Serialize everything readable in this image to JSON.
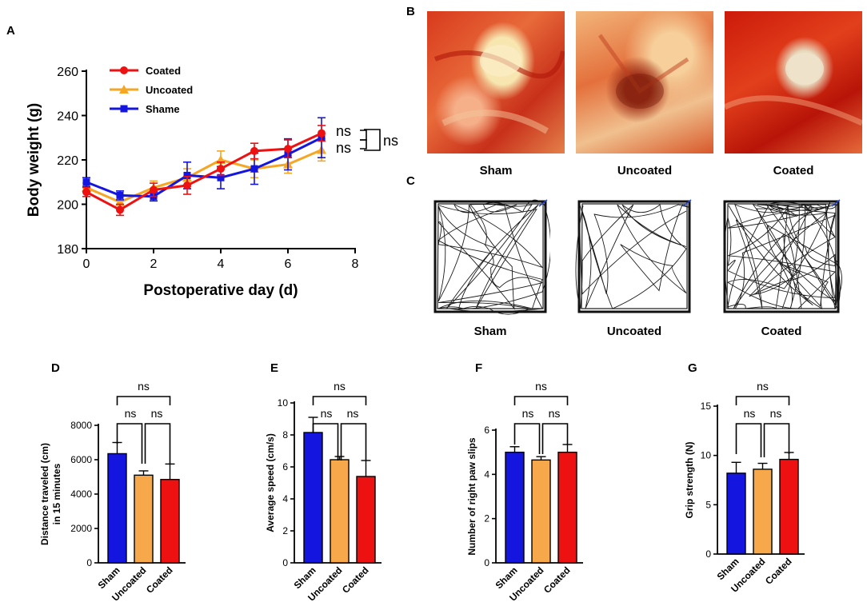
{
  "panel_labels": [
    "A",
    "B",
    "C",
    "D",
    "E",
    "F",
    "G"
  ],
  "colors": {
    "coated": "#ee1111",
    "uncoated": "#f5a623",
    "shame": "#1515e0",
    "sham_bar": "#1515e0",
    "uncoated_bar": "#f7a84a",
    "coated_bar": "#ee1111"
  },
  "significance": "ns",
  "photos": {
    "labels": [
      "Sham",
      "Uncoated",
      "Coated"
    ]
  },
  "tracks": {
    "labels": [
      "Sham",
      "Uncoated",
      "Coated"
    ]
  },
  "chart_data": [
    {
      "id": "A",
      "type": "line",
      "xlabel": "Postoperative day (d)",
      "ylabel": "Body weight (g)",
      "xlim": [
        0,
        8
      ],
      "ylim": [
        180,
        260
      ],
      "xticks": [
        0,
        2,
        4,
        6,
        8
      ],
      "yticks": [
        180,
        200,
        220,
        240,
        260
      ],
      "x": [
        0,
        1,
        2,
        3,
        4,
        5,
        6,
        7
      ],
      "legend": [
        "Coated",
        "Uncoated",
        "Shame"
      ],
      "series": [
        {
          "name": "Coated",
          "color": "#ee1111",
          "marker": "circle",
          "values": [
            205.5,
            197.5,
            206.5,
            208.5,
            216,
            224,
            225,
            232
          ],
          "errors": [
            2,
            2.5,
            3,
            4,
            3,
            3.5,
            4,
            3.5
          ]
        },
        {
          "name": "Uncoated",
          "color": "#f5a623",
          "marker": "triangle",
          "values": [
            207.5,
            201,
            207.5,
            212,
            220,
            216,
            218,
            224.5
          ],
          "errors": [
            2,
            3,
            3,
            4,
            4,
            4,
            4,
            5
          ]
        },
        {
          "name": "Shame",
          "color": "#1515e0",
          "marker": "square",
          "values": [
            210,
            204,
            203.5,
            213,
            212,
            216,
            222.5,
            230
          ],
          "errors": [
            2,
            2,
            2,
            6,
            5,
            7,
            7,
            9
          ]
        }
      ],
      "annotations": [
        "ns",
        "ns",
        "ns"
      ]
    },
    {
      "id": "D",
      "type": "bar",
      "ylabel_lines": [
        "Distance traveled (cm)",
        "in 15 minutes"
      ],
      "categories": [
        "Sham",
        "Uncoated",
        "Coated"
      ],
      "values": [
        6350,
        5100,
        4850
      ],
      "errors": [
        650,
        250,
        900
      ],
      "ylim": [
        0,
        8000
      ],
      "yticks": [
        0,
        2000,
        4000,
        6000,
        8000
      ],
      "annotations": [
        "ns",
        "ns",
        "ns"
      ]
    },
    {
      "id": "E",
      "type": "bar",
      "ylabel_lines": [
        "Average speed (cm/s)"
      ],
      "categories": [
        "Sham",
        "Uncoated",
        "Coated"
      ],
      "values": [
        8.15,
        6.45,
        5.4
      ],
      "errors": [
        0.95,
        0.2,
        1.0
      ],
      "ylim": [
        0,
        10
      ],
      "yticks": [
        0,
        2,
        4,
        6,
        8,
        10
      ],
      "annotations": [
        "ns",
        "ns",
        "ns"
      ]
    },
    {
      "id": "F",
      "type": "bar",
      "ylabel_lines": [
        "Number of right paw slips"
      ],
      "categories": [
        "Sham",
        "Uncoated",
        "Coated"
      ],
      "values": [
        5.0,
        4.65,
        5.0
      ],
      "errors": [
        0.25,
        0.15,
        0.35
      ],
      "ylim": [
        0,
        6
      ],
      "yticks": [
        0,
        2,
        4,
        6
      ],
      "annotations": [
        "ns",
        "ns",
        "ns"
      ]
    },
    {
      "id": "G",
      "type": "bar",
      "ylabel_lines": [
        "Grip strength (N)"
      ],
      "categories": [
        "Sham",
        "Uncoated",
        "Coated"
      ],
      "values": [
        8.2,
        8.6,
        9.6
      ],
      "errors": [
        1.1,
        0.6,
        0.7
      ],
      "ylim": [
        0,
        15
      ],
      "yticks": [
        0,
        5,
        10,
        15
      ],
      "annotations": [
        "ns",
        "ns",
        "ns"
      ]
    }
  ]
}
